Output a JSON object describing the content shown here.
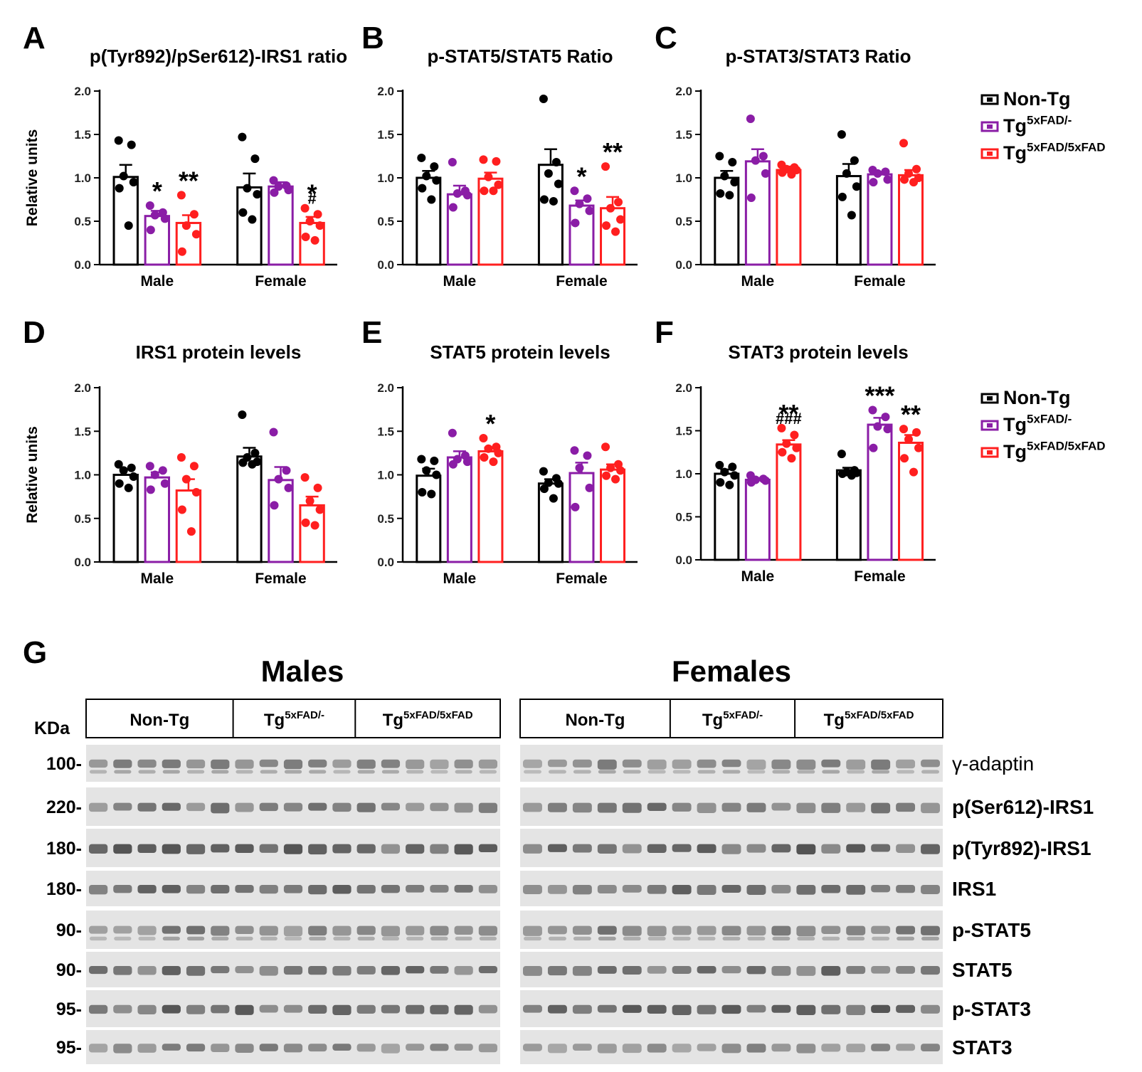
{
  "colors": {
    "Non-Tg": "#000000",
    "Tg5xFAD/-": "#8a1da6",
    "Tg5xFAD/5xFAD": "#ff1f1f"
  },
  "legend": [
    {
      "base": "Non-Tg",
      "sup": ""
    },
    {
      "base": "Tg",
      "sup": "5xFAD/-"
    },
    {
      "base": "Tg",
      "sup": "5xFAD/5xFAD"
    }
  ],
  "chart_data": [
    {
      "type": "bar",
      "panel": "A",
      "title": "p(Tyr892)/pSer612)-IRS1 ratio",
      "ylabel": "Relative units",
      "ylim": [
        0,
        2
      ],
      "yticks": [
        "0.0",
        "0.5",
        "1.0",
        "1.5",
        "2.0"
      ],
      "categories": [
        "Male",
        "Female"
      ],
      "series": [
        {
          "name": "Non-Tg",
          "values": [
            1.01,
            0.89
          ],
          "sem": [
            0.14,
            0.16
          ],
          "points": [
            [
              1.43,
              1.38,
              1.02,
              0.95,
              0.88,
              0.45
            ],
            [
              1.47,
              1.22,
              0.88,
              0.81,
              0.6,
              0.52
            ]
          ]
        },
        {
          "name": "Tg5xFAD/-",
          "values": [
            0.56,
            0.9
          ],
          "sem": [
            0.06,
            0.05
          ],
          "points": [
            [
              0.68,
              0.6,
              0.57,
              0.53,
              0.4
            ],
            [
              0.97,
              0.91,
              0.9,
              0.86,
              0.83
            ]
          ]
        },
        {
          "name": "Tg5xFAD/5xFAD",
          "values": [
            0.48,
            0.48
          ],
          "sem": [
            0.09,
            0.07
          ],
          "points": [
            [
              0.8,
              0.58,
              0.45,
              0.35,
              0.15
            ],
            [
              0.65,
              0.58,
              0.5,
              0.45,
              0.32,
              0.28
            ]
          ]
        }
      ],
      "annotations": [
        {
          "cat": 0,
          "series": 1,
          "text": "*"
        },
        {
          "cat": 0,
          "series": 2,
          "text": "**"
        },
        {
          "cat": 1,
          "series": 2,
          "text": "*"
        },
        {
          "cat": 1,
          "series": 2,
          "text": "#"
        }
      ]
    },
    {
      "type": "bar",
      "panel": "B",
      "title": "p-STAT5/STAT5 Ratio",
      "ylabel": "",
      "ylim": [
        0,
        2
      ],
      "yticks": [
        "0.0",
        "0.5",
        "1.0",
        "1.5",
        "2.0"
      ],
      "categories": [
        "Male",
        "Female"
      ],
      "series": [
        {
          "name": "Non-Tg",
          "values": [
            1.0,
            1.15
          ],
          "sem": [
            0.08,
            0.18
          ],
          "points": [
            [
              1.23,
              1.13,
              1.02,
              0.97,
              0.88,
              0.75
            ],
            [
              1.91,
              1.18,
              1.05,
              0.93,
              0.75,
              0.73
            ]
          ]
        },
        {
          "name": "Tg5xFAD/-",
          "values": [
            0.81,
            0.68
          ],
          "sem": [
            0.1,
            0.06
          ],
          "points": [
            [
              1.18,
              0.85,
              0.82,
              0.8,
              0.66
            ],
            [
              0.85,
              0.76,
              0.7,
              0.62,
              0.48
            ]
          ]
        },
        {
          "name": "Tg5xFAD/5xFAD",
          "values": [
            0.99,
            0.65
          ],
          "sem": [
            0.07,
            0.13
          ],
          "points": [
            [
              1.21,
              1.19,
              1.01,
              0.92,
              0.85,
              0.85
            ],
            [
              1.13,
              0.72,
              0.65,
              0.52,
              0.45,
              0.38
            ]
          ]
        }
      ],
      "annotations": [
        {
          "cat": 1,
          "series": 1,
          "text": "*"
        },
        {
          "cat": 1,
          "series": 2,
          "text": "**"
        }
      ]
    },
    {
      "type": "bar",
      "panel": "C",
      "title": "p-STAT3/STAT3 Ratio",
      "ylabel": "",
      "ylim": [
        0,
        2
      ],
      "yticks": [
        "0.0",
        "0.5",
        "1.0",
        "1.5",
        "2.0"
      ],
      "categories": [
        "Male",
        "Female"
      ],
      "series": [
        {
          "name": "Non-Tg",
          "values": [
            1.0,
            1.02
          ],
          "sem": [
            0.08,
            0.14
          ],
          "points": [
            [
              1.25,
              1.18,
              1.02,
              0.95,
              0.82,
              0.8
            ],
            [
              1.5,
              1.2,
              1.05,
              0.9,
              0.78,
              0.57
            ]
          ]
        },
        {
          "name": "Tg5xFAD/-",
          "values": [
            1.19,
            1.04
          ],
          "sem": [
            0.14,
            0.03
          ],
          "points": [
            [
              1.68,
              1.25,
              1.2,
              1.05,
              0.77
            ],
            [
              1.09,
              1.07,
              1.05,
              0.98,
              0.95
            ]
          ]
        },
        {
          "name": "Tg5xFAD/5xFAD",
          "values": [
            1.09,
            1.03
          ],
          "sem": [
            0.04,
            0.06
          ],
          "points": [
            [
              1.15,
              1.12,
              1.1,
              1.09,
              1.06,
              1.04
            ],
            [
              1.4,
              1.1,
              1.05,
              1.0,
              0.98,
              0.95
            ]
          ]
        }
      ],
      "annotations": []
    },
    {
      "type": "bar",
      "panel": "D",
      "title": "IRS1 protein levels",
      "ylabel": "Relative units",
      "ylim": [
        0,
        2
      ],
      "yticks": [
        "0.0",
        "0.5",
        "1.0",
        "1.5",
        "2.0"
      ],
      "categories": [
        "Male",
        "Female"
      ],
      "series": [
        {
          "name": "Non-Tg",
          "values": [
            1.0,
            1.21
          ],
          "sem": [
            0.06,
            0.1
          ],
          "points": [
            [
              1.12,
              1.08,
              1.05,
              0.98,
              0.9,
              0.85
            ],
            [
              1.69,
              1.25,
              1.2,
              1.15,
              1.14,
              1.12
            ]
          ]
        },
        {
          "name": "Tg5xFAD/-",
          "values": [
            0.97,
            0.94
          ],
          "sem": [
            0.06,
            0.15
          ],
          "points": [
            [
              1.1,
              1.05,
              1.0,
              0.9,
              0.83
            ],
            [
              1.49,
              1.05,
              0.95,
              0.85,
              0.65
            ]
          ]
        },
        {
          "name": "Tg5xFAD/5xFAD",
          "values": [
            0.82,
            0.65
          ],
          "sem": [
            0.13,
            0.1
          ],
          "points": [
            [
              1.2,
              1.1,
              0.95,
              0.8,
              0.6,
              0.35
            ],
            [
              0.97,
              0.85,
              0.7,
              0.6,
              0.45,
              0.42
            ]
          ]
        }
      ],
      "annotations": []
    },
    {
      "type": "bar",
      "panel": "E",
      "title": "STAT5 protein levels",
      "ylabel": "",
      "ylim": [
        0,
        2
      ],
      "yticks": [
        "0.0",
        "0.5",
        "1.0",
        "1.5",
        "2.0"
      ],
      "categories": [
        "Male",
        "Female"
      ],
      "series": [
        {
          "name": "Non-Tg",
          "values": [
            0.99,
            0.9
          ],
          "sem": [
            0.08,
            0.05
          ],
          "points": [
            [
              1.18,
              1.16,
              1.05,
              1.0,
              0.8,
              0.78
            ],
            [
              1.04,
              0.96,
              0.91,
              0.9,
              0.84,
              0.73
            ]
          ]
        },
        {
          "name": "Tg5xFAD/-",
          "values": [
            1.2,
            1.02
          ],
          "sem": [
            0.07,
            0.12
          ],
          "points": [
            [
              1.48,
              1.22,
              1.18,
              1.15,
              1.12
            ],
            [
              1.28,
              1.22,
              1.08,
              0.85,
              0.63
            ]
          ]
        },
        {
          "name": "Tg5xFAD/5xFAD",
          "values": [
            1.27,
            1.06
          ],
          "sem": [
            0.04,
            0.06
          ],
          "points": [
            [
              1.42,
              1.32,
              1.3,
              1.25,
              1.2,
              1.15
            ],
            [
              1.32,
              1.12,
              1.08,
              1.05,
              0.99,
              0.95
            ]
          ]
        }
      ],
      "annotations": [
        {
          "cat": 0,
          "series": 2,
          "text": "*"
        }
      ]
    },
    {
      "type": "bar",
      "panel": "F",
      "title": "STAT3 protein levels",
      "ylabel": "",
      "ylim": [
        0,
        2
      ],
      "yticks": [
        "0.0",
        "0.5",
        "1.0",
        "1.5",
        "2.0"
      ],
      "categories": [
        "Male",
        "Female"
      ],
      "series": [
        {
          "name": "Non-Tg",
          "values": [
            1.0,
            1.04
          ],
          "sem": [
            0.05,
            0.03
          ],
          "points": [
            [
              1.1,
              1.08,
              1.02,
              0.98,
              0.9,
              0.87
            ],
            [
              1.23,
              1.04,
              1.02,
              1.01,
              1.0,
              0.98
            ]
          ]
        },
        {
          "name": "Tg5xFAD/-",
          "values": [
            0.93,
            1.57
          ],
          "sem": [
            0.02,
            0.08
          ],
          "points": [
            [
              0.98,
              0.94,
              0.93,
              0.92,
              0.9
            ],
            [
              1.74,
              1.66,
              1.55,
              1.52,
              1.3
            ]
          ]
        },
        {
          "name": "Tg5xFAD/5xFAD",
          "values": [
            1.34,
            1.36
          ],
          "sem": [
            0.05,
            0.09
          ],
          "points": [
            [
              1.53,
              1.45,
              1.35,
              1.3,
              1.25,
              1.18
            ],
            [
              1.52,
              1.48,
              1.4,
              1.3,
              1.18,
              1.02
            ]
          ]
        }
      ],
      "annotations": [
        {
          "cat": 0,
          "series": 2,
          "text": "**"
        },
        {
          "cat": 0,
          "series": 2,
          "text": "###"
        },
        {
          "cat": 1,
          "series": 1,
          "text": "***"
        },
        {
          "cat": 1,
          "series": 2,
          "text": "**"
        }
      ]
    }
  ],
  "blot": {
    "panel": "G",
    "sex_labels": [
      "Males",
      "Females"
    ],
    "kda_label": "KDa",
    "group_labels": [
      {
        "base": "Non-Tg",
        "sup": ""
      },
      {
        "base": "Tg",
        "sup": "5xFAD/-"
      },
      {
        "base": "Tg",
        "sup": "5xFAD/5xFAD"
      }
    ],
    "rows": [
      {
        "kda": "100-",
        "label": "γ-adaptin",
        "intensity": 0.55
      },
      {
        "kda": "220-",
        "label": "p(Ser612)-IRS1",
        "intensity": 0.65
      },
      {
        "kda": "180-",
        "label": "p(Tyr892)-IRS1",
        "intensity": 0.75
      },
      {
        "kda": "180-",
        "label": "IRS1",
        "intensity": 0.7
      },
      {
        "kda": "90-",
        "label": "p-STAT5",
        "intensity": 0.6
      },
      {
        "kda": "90-",
        "label": "STAT5",
        "intensity": 0.7
      },
      {
        "kda": "95-",
        "label": "p-STAT3",
        "intensity": 0.75
      },
      {
        "kda": "95-",
        "label": "STAT3",
        "intensity": 0.55
      }
    ]
  }
}
